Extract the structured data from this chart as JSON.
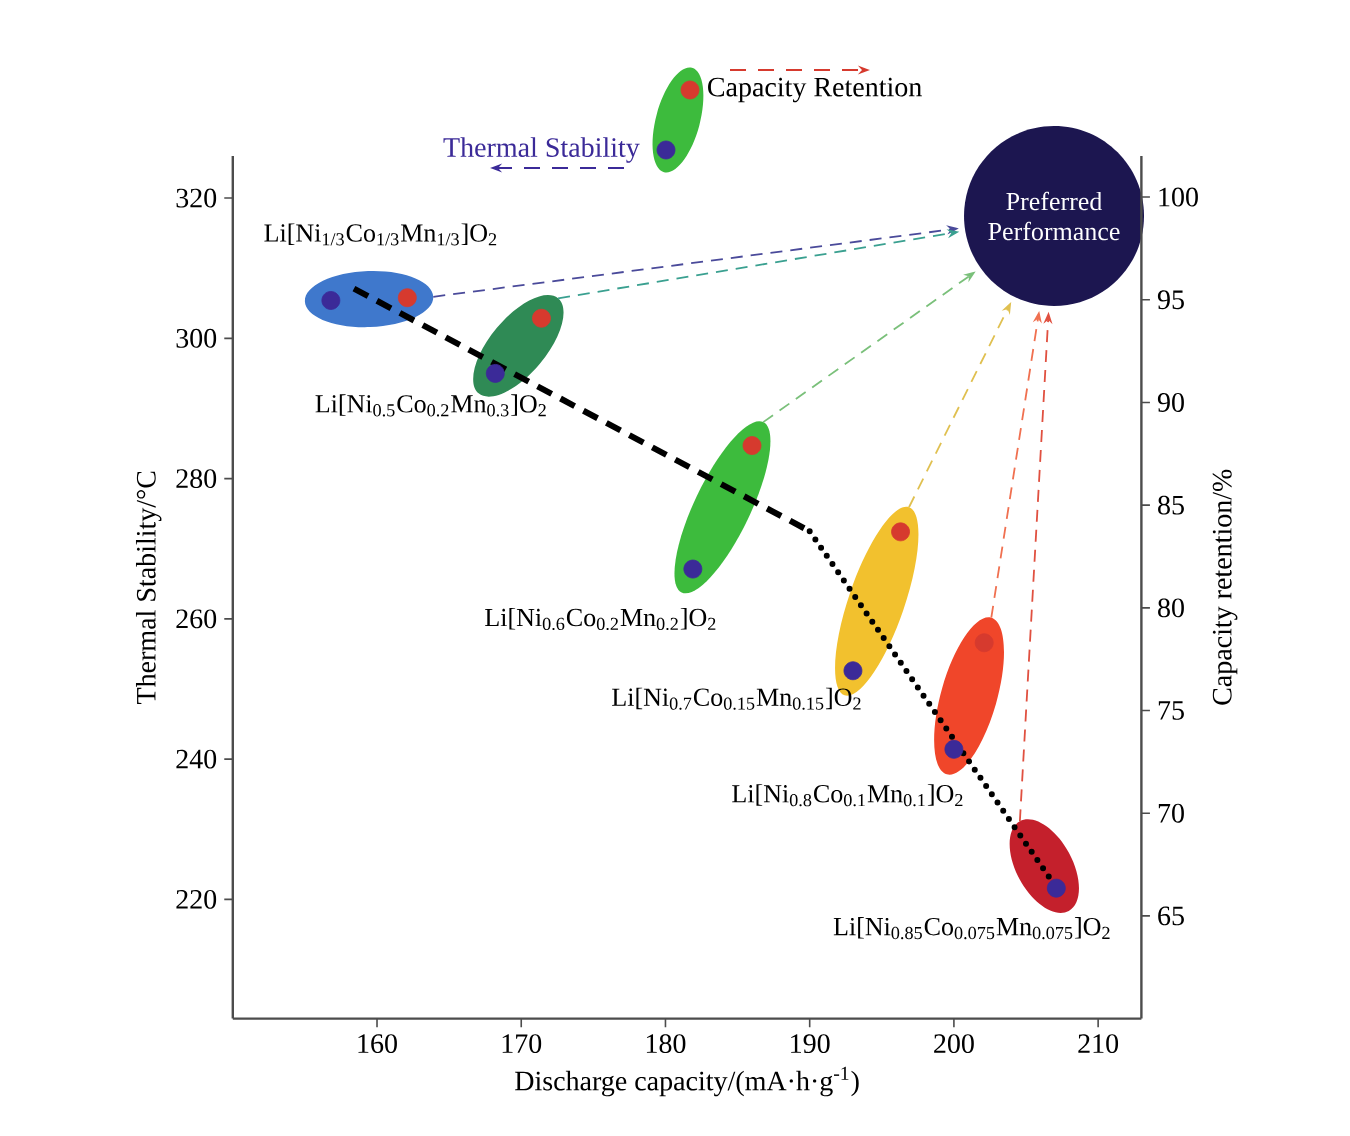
{
  "chart_data": {
    "type": "scatter",
    "xlabel": "Discharge capacity/(mA·h·g$^{-1}$)",
    "ylabel": "Thermal Stability/°C",
    "y2label": "Capacity retention/%",
    "xlim": [
      150,
      213
    ],
    "xticks": [
      160,
      170,
      180,
      190,
      200,
      210
    ],
    "ylim": [
      203,
      326
    ],
    "yticks": [
      220,
      240,
      260,
      280,
      300,
      320
    ],
    "y2lim": [
      60,
      102
    ],
    "y2ticks": [
      65,
      70,
      75,
      80,
      85,
      90,
      95,
      100
    ],
    "marker": "circle",
    "legend": "top",
    "series": [
      {
        "name": "Thermal Stability",
        "color": "#3b2a98",
        "x": [
          156.8,
          168.2,
          181.9,
          193.0,
          200.0,
          207.1
        ],
        "values": [
          305.4,
          295.0,
          267.1,
          252.6,
          241.4,
          221.6
        ]
      },
      {
        "name": "Capacity Retention",
        "color": "#d63a2e",
        "axis": "y2",
        "x": [
          162.1,
          171.4,
          186.0,
          196.3,
          202.1
        ],
        "values": [
          95.1,
          94.1,
          87.9,
          83.7,
          78.3
        ]
      },
      {
        "type": "line",
        "color": "#000000",
        "line_style": "dashed",
        "marker": "none",
        "x": [
          158.4,
          190.0
        ],
        "values": [
          307.1,
          272.5
        ]
      },
      {
        "type": "line",
        "color": "#000000",
        "line_style": "dotted",
        "marker": "none",
        "x": [
          190.0,
          207.0
        ],
        "values": [
          272.5,
          222.0
        ]
      }
    ],
    "annotations": [
      {
        "text": "Li[Ni$_{1/3}$Co$_{1/3}$Mn$_{1/3}$]O$_{2}$",
        "x": 156.8,
        "y": 305.4
      },
      {
        "text": "Li[Ni$_{0.5}$Co$_{0.2}$Mn$_{0.3}$]O$_{2}$",
        "x": 168.2,
        "y": 295.0
      },
      {
        "text": "Li[Ni$_{0.6}$Co$_{0.2}$Mn$_{0.2}$]O$_{2}$",
        "x": 181.9,
        "y": 267.1
      },
      {
        "text": "Li[Ni$_{0.7}$Co$_{0.15}$Mn$_{0.15}$]O$_{2}$",
        "x": 193.0,
        "y": 252.6
      },
      {
        "text": "Li[Ni$_{0.8}$Co$_{0.1}$Mn$_{0.1}$]O$_{2}$",
        "x": 200.0,
        "y": 241.4
      },
      {
        "text": "Li[Ni$_{0.85}$Co$_{0.075}$Mn$_{0.075}$]O$_{2}$",
        "x": 207.1,
        "y": 221.6
      },
      "Preferred Performance"
    ]
  }
}
